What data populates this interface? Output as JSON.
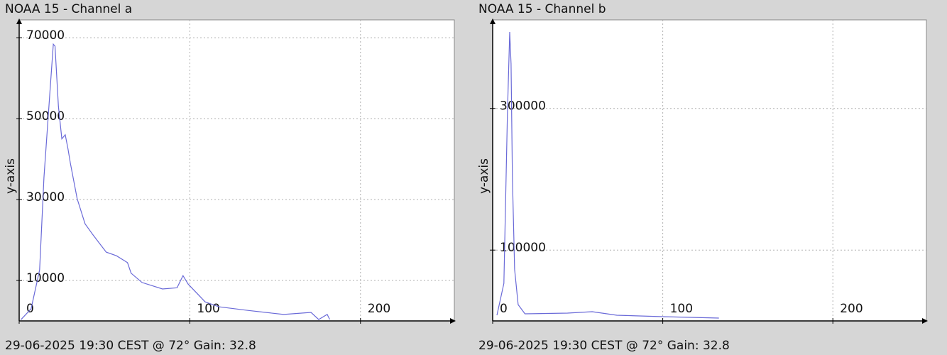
{
  "chart_data": [
    {
      "type": "line",
      "title": "NOAA 15 - Channel a",
      "y_label": "y-axis",
      "footer": "29-06-2025 19:30 CEST @ 72° Gain: 32.8",
      "xlim": [
        0,
        255
      ],
      "ylim": [
        0,
        74400
      ],
      "xticks": [
        0,
        100,
        200
      ],
      "yticks": [
        10000,
        30000,
        50000,
        70000
      ],
      "grid": true,
      "series": [
        {
          "color": "#6a6ad8",
          "x": [
            1,
            7,
            12,
            14.5,
            18,
            20,
            21,
            23,
            25,
            27,
            28.6,
            30,
            34,
            38.6,
            43,
            51,
            57,
            63.5,
            65.6,
            72,
            84,
            92.5,
            96,
            99,
            109,
            117,
            134,
            155,
            171,
            175.5,
            180.5,
            182
          ],
          "values": [
            300,
            3000,
            12600,
            35400,
            56500,
            68400,
            67900,
            53000,
            45000,
            46000,
            42500,
            39000,
            30200,
            24000,
            21400,
            17000,
            16100,
            14400,
            11800,
            9500,
            7900,
            8200,
            11200,
            9100,
            4700,
            3500,
            2600,
            1600,
            2100,
            350,
            1600,
            350
          ]
        }
      ]
    },
    {
      "type": "line",
      "title": "NOAA 15 - Channel b",
      "y_label": "y-axis",
      "footer": "29-06-2025 19:30 CEST @ 72° Gain: 32.8",
      "xlim": [
        0,
        255
      ],
      "ylim": [
        0,
        425000
      ],
      "xticks": [
        0,
        100,
        200
      ],
      "yticks": [
        100000,
        300000
      ],
      "grid": true,
      "series": [
        {
          "color": "#6a6ad8",
          "x": [
            2.5,
            6.6,
            8.7,
            10,
            10.8,
            11.6,
            12.9,
            15,
            19,
            44,
            58.5,
            73,
            100,
            133
          ],
          "values": [
            8000,
            53000,
            293000,
            408000,
            363000,
            203000,
            73000,
            23000,
            10000,
            11000,
            13000,
            8000,
            6000,
            4000
          ]
        }
      ]
    }
  ]
}
